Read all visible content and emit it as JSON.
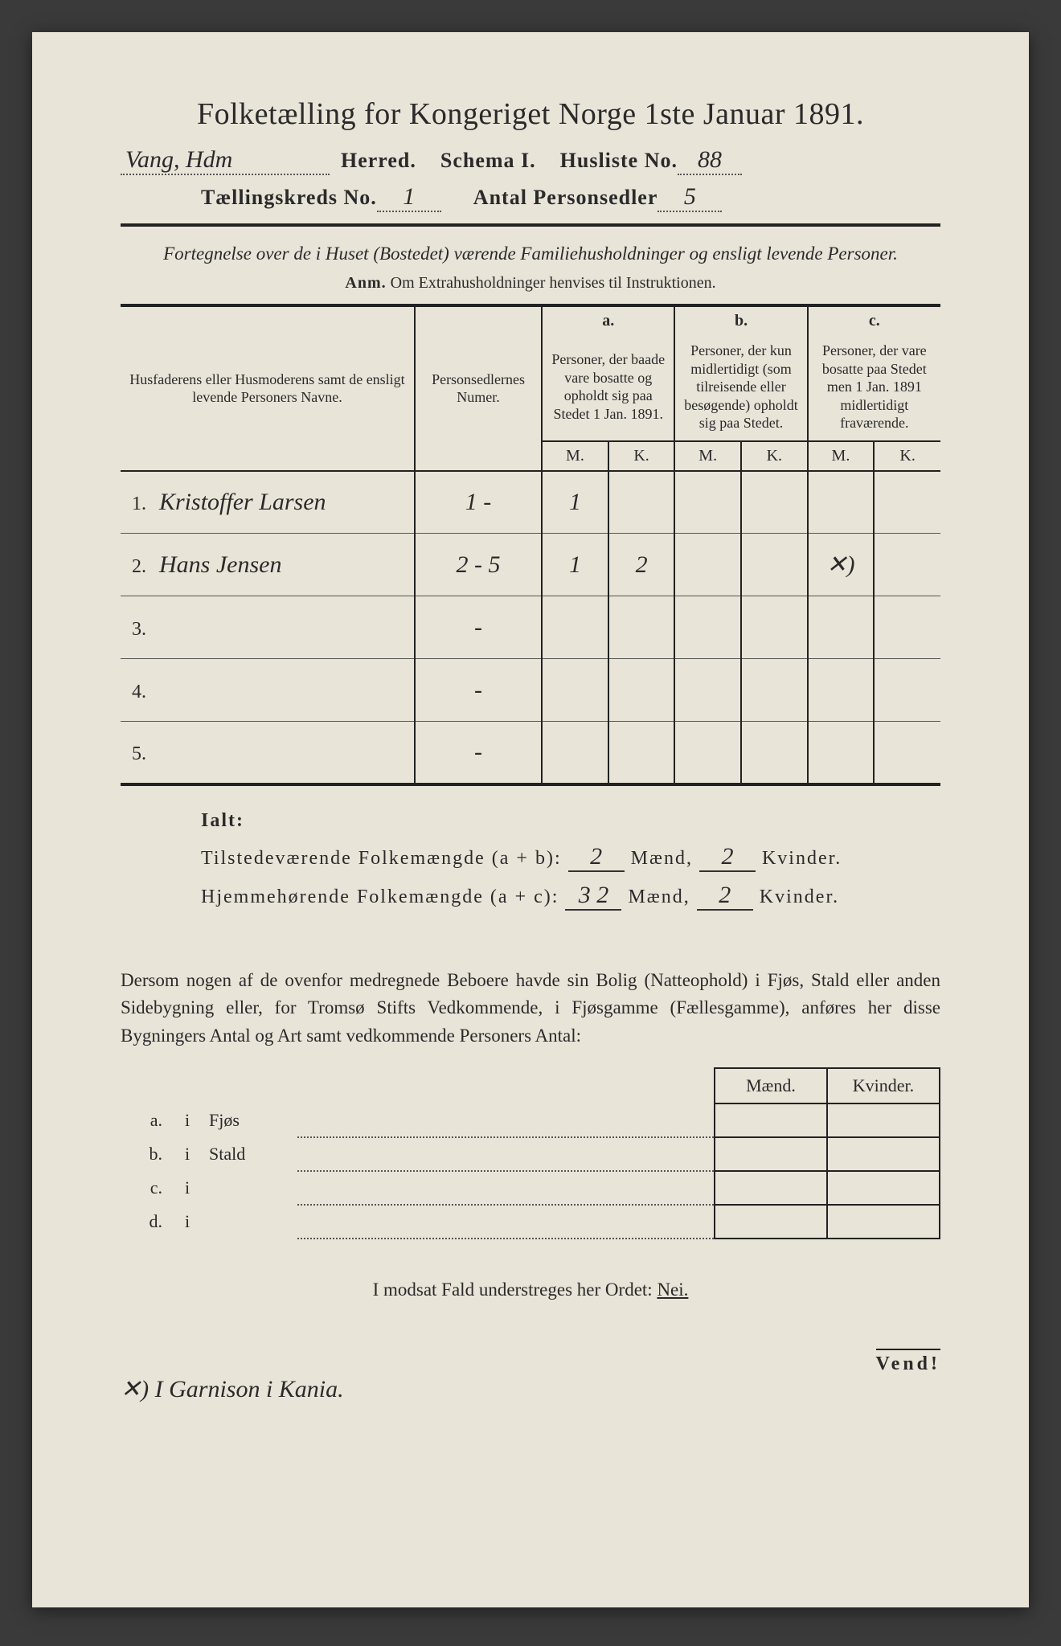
{
  "title": "Folketælling for Kongeriget Norge 1ste Januar 1891.",
  "header": {
    "herred_hw": "Vang, Hdm",
    "herred_label": "Herred.",
    "schema_label": "Schema I.",
    "husliste_label": "Husliste No.",
    "husliste_no": "88",
    "kreds_label": "Tællingskreds No.",
    "kreds_no": "1",
    "antal_label": "Antal Personsedler",
    "antal_val": "5"
  },
  "subtitle": "Fortegnelse over de i Huset (Bostedet) værende Familiehusholdninger og ensligt levende Personer.",
  "anm_label": "Anm.",
  "anm_text": "Om Extrahusholdninger henvises til Instruktionen.",
  "table": {
    "col1": "Husfaderens eller Husmoderens samt de ensligt levende Personers Navne.",
    "col2": "Personsedlernes Numer.",
    "a_label": "a.",
    "a_text": "Personer, der baade vare bosatte og opholdt sig paa Stedet 1 Jan. 1891.",
    "b_label": "b.",
    "b_text": "Personer, der kun midlertidigt (som tilreisende eller besøgende) opholdt sig paa Stedet.",
    "c_label": "c.",
    "c_text": "Personer, der vare bosatte paa Stedet men 1 Jan. 1891 midlertidigt fraværende.",
    "M": "M.",
    "K": "K.",
    "rows": [
      {
        "n": "1.",
        "name": "Kristoffer Larsen",
        "num": "1 -",
        "aM": "1",
        "aK": "",
        "bM": "",
        "bK": "",
        "cM": "",
        "cK": ""
      },
      {
        "n": "2.",
        "name": "Hans Jensen",
        "num": "2 - 5",
        "aM": "1",
        "aK": "2",
        "bM": "",
        "bK": "",
        "cM": "✕)",
        "cK": ""
      },
      {
        "n": "3.",
        "name": "",
        "num": "-",
        "aM": "",
        "aK": "",
        "bM": "",
        "bK": "",
        "cM": "",
        "cK": ""
      },
      {
        "n": "4.",
        "name": "",
        "num": "-",
        "aM": "",
        "aK": "",
        "bM": "",
        "bK": "",
        "cM": "",
        "cK": ""
      },
      {
        "n": "5.",
        "name": "",
        "num": "-",
        "aM": "",
        "aK": "",
        "bM": "",
        "bK": "",
        "cM": "",
        "cK": ""
      }
    ]
  },
  "ialt": {
    "title": "Ialt:",
    "line1_a": "Tilstedeværende Folkemængde (a + b):",
    "line1_m": "2",
    "line1_k": "2",
    "line2_a": "Hjemmehørende Folkemængde (a + c):",
    "line2_m": "3 2",
    "line2_k": "2",
    "maend": "Mænd,",
    "kvinder": "Kvinder."
  },
  "para": "Dersom nogen af de ovenfor medregnede Beboere havde sin Bolig (Natteophold) i Fjøs, Stald eller anden Sidebygning eller, for Tromsø Stifts Vedkommende, i Fjøsgamme (Fællesgamme), anføres her disse Bygningers Antal og Art samt vedkommende Personers Antal:",
  "subtable": {
    "maend": "Mænd.",
    "kvinder": "Kvinder.",
    "rows": [
      {
        "label": "a.",
        "i": "i",
        "type": "Fjøs"
      },
      {
        "label": "b.",
        "i": "i",
        "type": "Stald"
      },
      {
        "label": "c.",
        "i": "i",
        "type": ""
      },
      {
        "label": "d.",
        "i": "i",
        "type": ""
      }
    ]
  },
  "nei_line_a": "I modsat Fald understreges her Ordet:",
  "nei_line_b": "Nei.",
  "vend": "Vend!",
  "footnote": "✕) I Garnison i Kania."
}
